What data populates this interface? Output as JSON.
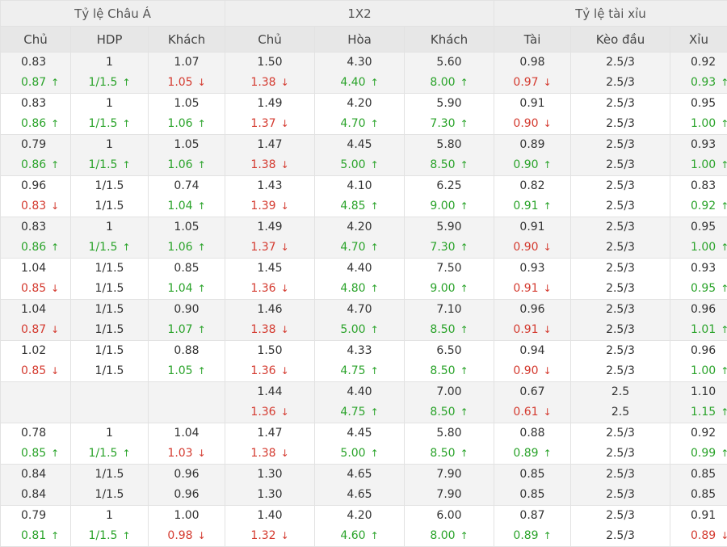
{
  "headers": {
    "groups": [
      "Tỷ lệ Châu Á",
      "1X2",
      "Tỷ lệ tài xỉu"
    ],
    "columns": [
      "Chủ",
      "HDP",
      "Khách",
      "Chủ",
      "Hòa",
      "Khách",
      "Tài",
      "Kèo đầu",
      "Xỉu"
    ]
  },
  "colors": {
    "up": "#2aa32a",
    "down": "#d43a2f"
  },
  "icons": {
    "up": "arrow-up-icon",
    "down": "arrow-down-icon"
  },
  "rows": [
    [
      [
        "0.83",
        "0.87",
        "up"
      ],
      [
        "1",
        "1/1.5",
        "up"
      ],
      [
        "1.07",
        "1.05",
        "down"
      ],
      [
        "1.50",
        "1.38",
        "down"
      ],
      [
        "4.30",
        "4.40",
        "up"
      ],
      [
        "5.60",
        "8.00",
        "up"
      ],
      [
        "0.98",
        "0.97",
        "down"
      ],
      [
        "2.5/3",
        "2.5/3",
        ""
      ],
      [
        "0.92",
        "0.93",
        "up"
      ]
    ],
    [
      [
        "0.83",
        "0.86",
        "up"
      ],
      [
        "1",
        "1/1.5",
        "up"
      ],
      [
        "1.05",
        "1.06",
        "up"
      ],
      [
        "1.49",
        "1.37",
        "down"
      ],
      [
        "4.20",
        "4.70",
        "up"
      ],
      [
        "5.90",
        "7.30",
        "up"
      ],
      [
        "0.91",
        "0.90",
        "down"
      ],
      [
        "2.5/3",
        "2.5/3",
        ""
      ],
      [
        "0.95",
        "1.00",
        "up"
      ]
    ],
    [
      [
        "0.79",
        "0.86",
        "up"
      ],
      [
        "1",
        "1/1.5",
        "up"
      ],
      [
        "1.05",
        "1.06",
        "up"
      ],
      [
        "1.47",
        "1.38",
        "down"
      ],
      [
        "4.45",
        "5.00",
        "up"
      ],
      [
        "5.80",
        "8.50",
        "up"
      ],
      [
        "0.89",
        "0.90",
        "up"
      ],
      [
        "2.5/3",
        "2.5/3",
        ""
      ],
      [
        "0.93",
        "1.00",
        "up"
      ]
    ],
    [
      [
        "0.96",
        "0.83",
        "down"
      ],
      [
        "1/1.5",
        "1/1.5",
        ""
      ],
      [
        "0.74",
        "1.04",
        "up"
      ],
      [
        "1.43",
        "1.39",
        "down"
      ],
      [
        "4.10",
        "4.85",
        "up"
      ],
      [
        "6.25",
        "9.00",
        "up"
      ],
      [
        "0.82",
        "0.91",
        "up"
      ],
      [
        "2.5/3",
        "2.5/3",
        ""
      ],
      [
        "0.83",
        "0.92",
        "up"
      ]
    ],
    [
      [
        "0.83",
        "0.86",
        "up"
      ],
      [
        "1",
        "1/1.5",
        "up"
      ],
      [
        "1.05",
        "1.06",
        "up"
      ],
      [
        "1.49",
        "1.37",
        "down"
      ],
      [
        "4.20",
        "4.70",
        "up"
      ],
      [
        "5.90",
        "7.30",
        "up"
      ],
      [
        "0.91",
        "0.90",
        "down"
      ],
      [
        "2.5/3",
        "2.5/3",
        ""
      ],
      [
        "0.95",
        "1.00",
        "up"
      ]
    ],
    [
      [
        "1.04",
        "0.85",
        "down"
      ],
      [
        "1/1.5",
        "1/1.5",
        ""
      ],
      [
        "0.85",
        "1.04",
        "up"
      ],
      [
        "1.45",
        "1.36",
        "down"
      ],
      [
        "4.40",
        "4.80",
        "up"
      ],
      [
        "7.50",
        "9.00",
        "up"
      ],
      [
        "0.93",
        "0.91",
        "down"
      ],
      [
        "2.5/3",
        "2.5/3",
        ""
      ],
      [
        "0.93",
        "0.95",
        "up"
      ]
    ],
    [
      [
        "1.04",
        "0.87",
        "down"
      ],
      [
        "1/1.5",
        "1/1.5",
        ""
      ],
      [
        "0.90",
        "1.07",
        "up"
      ],
      [
        "1.46",
        "1.38",
        "down"
      ],
      [
        "4.70",
        "5.00",
        "up"
      ],
      [
        "7.10",
        "8.50",
        "up"
      ],
      [
        "0.96",
        "0.91",
        "down"
      ],
      [
        "2.5/3",
        "2.5/3",
        ""
      ],
      [
        "0.96",
        "1.01",
        "up"
      ]
    ],
    [
      [
        "1.02",
        "0.85",
        "down"
      ],
      [
        "1/1.5",
        "1/1.5",
        ""
      ],
      [
        "0.88",
        "1.05",
        "up"
      ],
      [
        "1.50",
        "1.36",
        "down"
      ],
      [
        "4.33",
        "4.75",
        "up"
      ],
      [
        "6.50",
        "8.50",
        "up"
      ],
      [
        "0.94",
        "0.90",
        "down"
      ],
      [
        "2.5/3",
        "2.5/3",
        ""
      ],
      [
        "0.96",
        "1.00",
        "up"
      ]
    ],
    [
      [
        "",
        "",
        ""
      ],
      [
        "",
        "",
        ""
      ],
      [
        "",
        "",
        ""
      ],
      [
        "1.44",
        "1.36",
        "down"
      ],
      [
        "4.40",
        "4.75",
        "up"
      ],
      [
        "7.00",
        "8.50",
        "up"
      ],
      [
        "0.67",
        "0.61",
        "down"
      ],
      [
        "2.5",
        "2.5",
        ""
      ],
      [
        "1.10",
        "1.15",
        "up"
      ]
    ],
    [
      [
        "0.78",
        "0.85",
        "up"
      ],
      [
        "1",
        "1/1.5",
        "up"
      ],
      [
        "1.04",
        "1.03",
        "down"
      ],
      [
        "1.47",
        "1.38",
        "down"
      ],
      [
        "4.45",
        "5.00",
        "up"
      ],
      [
        "5.80",
        "8.50",
        "up"
      ],
      [
        "0.88",
        "0.89",
        "up"
      ],
      [
        "2.5/3",
        "2.5/3",
        ""
      ],
      [
        "0.92",
        "0.99",
        "up"
      ]
    ],
    [
      [
        "0.84",
        "0.84",
        ""
      ],
      [
        "1/1.5",
        "1/1.5",
        ""
      ],
      [
        "0.96",
        "0.96",
        ""
      ],
      [
        "1.30",
        "1.30",
        ""
      ],
      [
        "4.65",
        "4.65",
        ""
      ],
      [
        "7.90",
        "7.90",
        ""
      ],
      [
        "0.85",
        "0.85",
        ""
      ],
      [
        "2.5/3",
        "2.5/3",
        ""
      ],
      [
        "0.85",
        "0.85",
        ""
      ]
    ],
    [
      [
        "0.79",
        "0.81",
        "up"
      ],
      [
        "1",
        "1/1.5",
        "up"
      ],
      [
        "1.00",
        "0.98",
        "down"
      ],
      [
        "1.40",
        "1.32",
        "down"
      ],
      [
        "4.20",
        "4.60",
        "up"
      ],
      [
        "6.00",
        "8.00",
        "up"
      ],
      [
        "0.87",
        "0.89",
        "up"
      ],
      [
        "2.5/3",
        "2.5/3",
        ""
      ],
      [
        "0.91",
        "0.89",
        "down"
      ]
    ]
  ]
}
